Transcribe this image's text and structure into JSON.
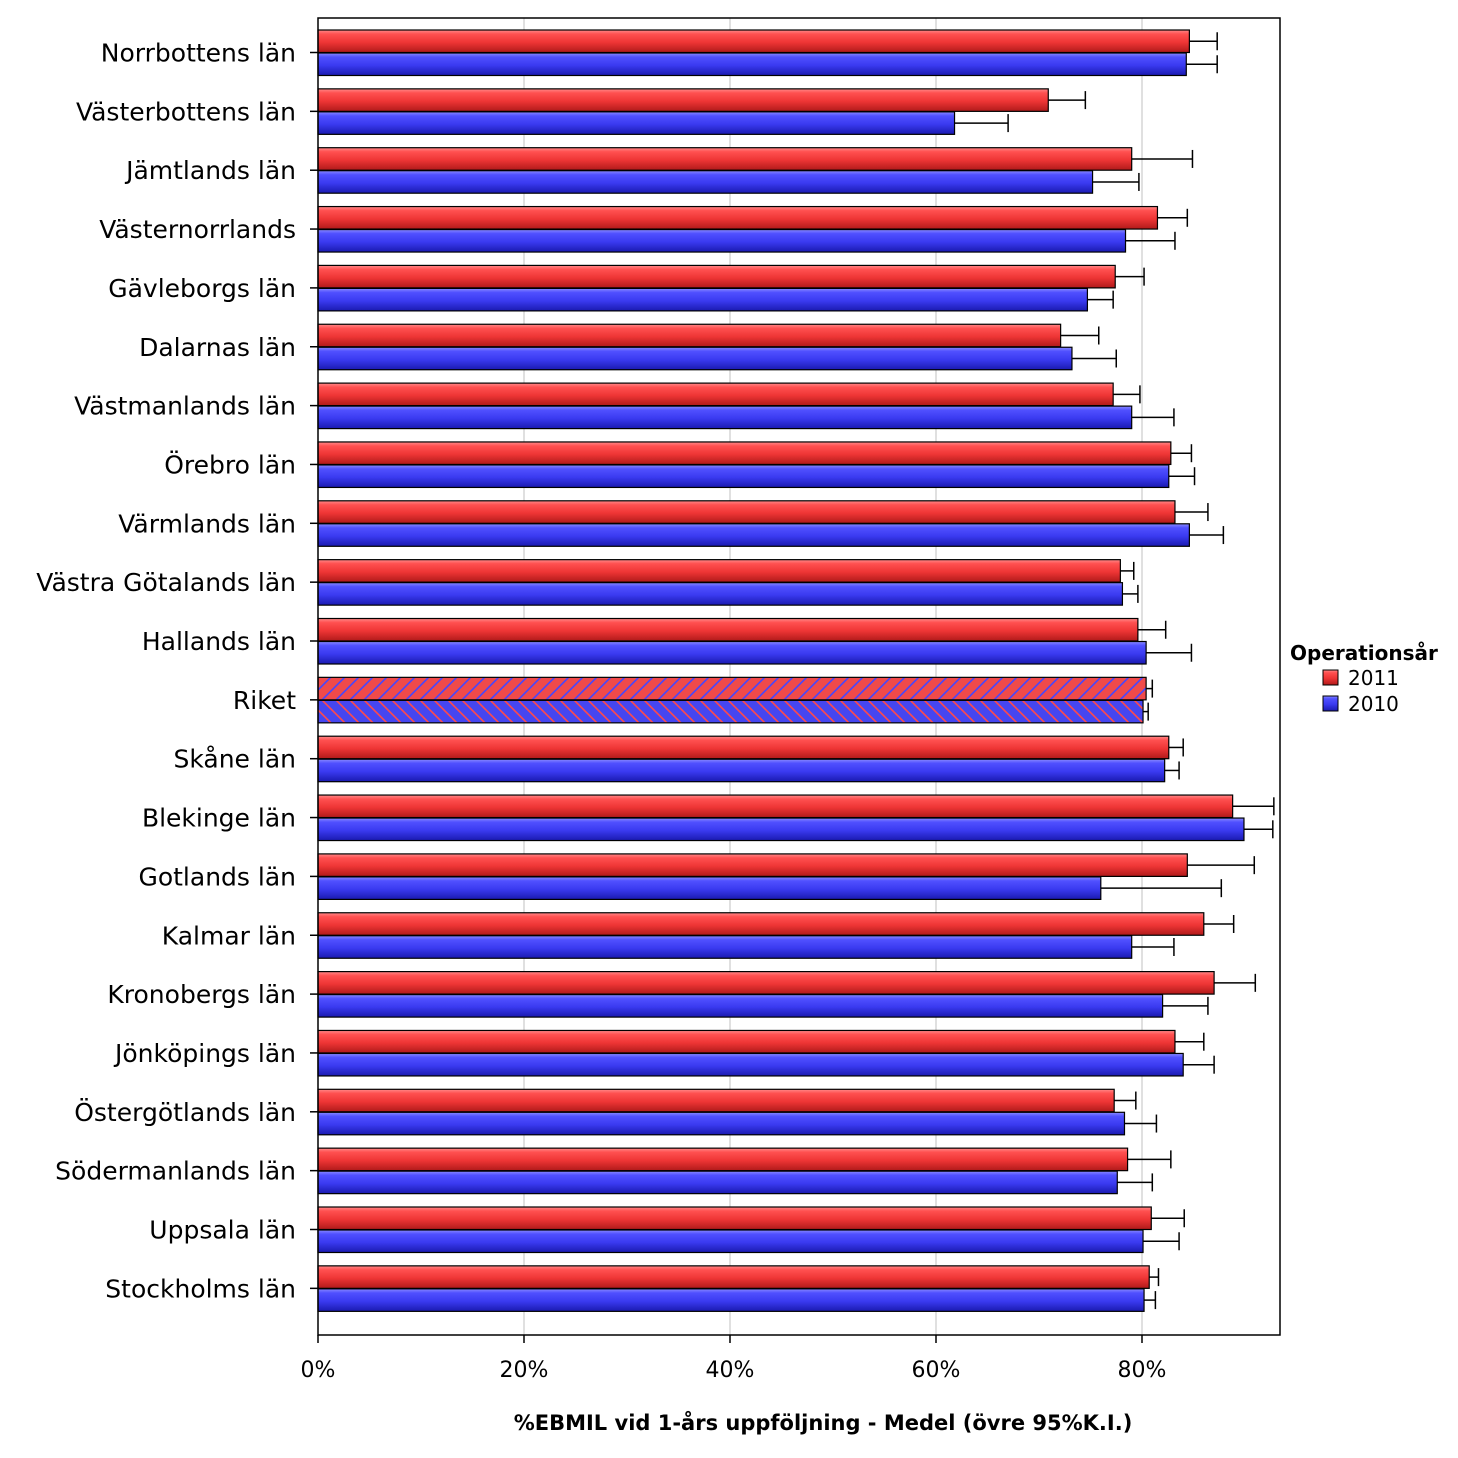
{
  "chart_data": {
    "type": "bar",
    "orientation": "horizontal",
    "xlabel": "%EBMIL vid 1-års uppföljning - Medel (övre 95%K.I.)",
    "xlim": [
      0,
      93
    ],
    "x_ticks": [
      "0%",
      "20%",
      "40%",
      "60%",
      "80%"
    ],
    "x_tick_values": [
      0,
      20,
      40,
      60,
      80
    ],
    "grid": true,
    "legend": {
      "title": "Operationsår",
      "placement": "right"
    },
    "highlighted_category": "Riket",
    "categories": [
      "Norrbottens län",
      "Västerbottens län",
      "Jämtlands län",
      "Västernorrlands",
      "Gävleborgs län",
      "Dalarnas län",
      "Västmanlands län",
      "Örebro län",
      "Värmlands län",
      "Västra Götalands län",
      "Hallands län",
      "Riket",
      "Skåne län",
      "Blekinge län",
      "Gotlands län",
      "Kalmar län",
      "Kronobergs län",
      "Jönköpings län",
      "Östergötlands län",
      "Södermanlands län",
      "Uppsala län",
      "Stockholms län"
    ],
    "series": [
      {
        "name": "2011",
        "color": "#ee3535",
        "values": [
          84.6,
          70.9,
          79.0,
          81.5,
          77.4,
          72.1,
          77.2,
          82.8,
          83.2,
          77.9,
          79.6,
          80.4,
          82.6,
          88.8,
          84.4,
          86.0,
          87.0,
          83.2,
          77.3,
          78.6,
          80.9,
          80.7
        ],
        "upper_ci": [
          87.3,
          74.5,
          84.9,
          84.4,
          80.2,
          75.8,
          79.8,
          84.8,
          86.4,
          79.2,
          82.3,
          81.0,
          84.0,
          92.8,
          90.9,
          88.9,
          91.0,
          86.0,
          79.4,
          82.8,
          84.1,
          81.6
        ]
      },
      {
        "name": "2010",
        "color": "#3a3af0",
        "values": [
          84.3,
          61.8,
          75.2,
          78.4,
          74.7,
          73.2,
          79.0,
          82.6,
          84.6,
          78.1,
          80.4,
          80.1,
          82.2,
          89.9,
          76.0,
          79.0,
          82.0,
          84.0,
          78.3,
          77.6,
          80.1,
          80.2
        ],
        "upper_ci": [
          87.3,
          67.0,
          79.7,
          83.2,
          77.2,
          77.5,
          83.1,
          85.1,
          87.9,
          79.6,
          84.8,
          80.6,
          83.6,
          92.7,
          87.7,
          83.1,
          86.4,
          87.0,
          81.4,
          81.0,
          83.6,
          81.3
        ]
      }
    ]
  }
}
